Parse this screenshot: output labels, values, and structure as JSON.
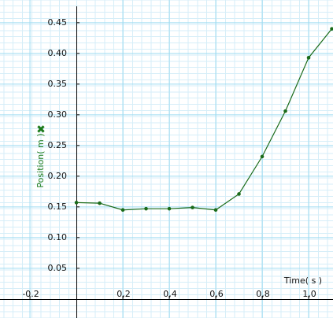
{
  "chart_data": {
    "type": "line",
    "x_label": "Time( s )",
    "y_label": "Position( m )",
    "x": [
      0,
      0.1,
      0.2,
      0.3,
      0.4,
      0.5,
      0.6,
      0.7,
      0.8,
      0.9,
      1.0,
      1.1
    ],
    "series": [
      {
        "name": "Position",
        "color": "#1a6b1a",
        "values": [
          0.157,
          0.156,
          0.145,
          0.147,
          0.147,
          0.149,
          0.145,
          0.171,
          0.232,
          0.306,
          0.393,
          0.44
        ]
      }
    ],
    "xlim": [
      -0.329,
      1.105
    ],
    "ylim": [
      -0.031,
      0.487
    ],
    "xticks": [
      -0.2,
      {
        "value": 0.2,
        "label": "0,2"
      },
      {
        "value": 0.4,
        "label": "0,4"
      },
      {
        "value": 0.6,
        "label": "0,6"
      },
      {
        "value": 0.8,
        "label": "0,8"
      },
      {
        "value": 1.0,
        "label": "1,0"
      }
    ],
    "yticks": [
      0.05,
      {
        "value": 0.1,
        "label": "0.10"
      },
      0.15,
      {
        "value": 0.2,
        "label": "0.20"
      },
      0.25,
      {
        "value": 0.3,
        "label": "0.30"
      },
      0.35,
      {
        "value": 0.4,
        "label": "0.40"
      },
      0.45
    ],
    "grid": true
  }
}
